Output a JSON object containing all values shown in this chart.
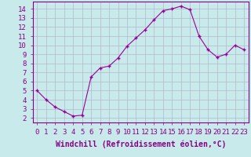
{
  "x": [
    0,
    1,
    2,
    3,
    4,
    5,
    6,
    7,
    8,
    9,
    10,
    11,
    12,
    13,
    14,
    15,
    16,
    17,
    18,
    19,
    20,
    21,
    22,
    23
  ],
  "y": [
    5.0,
    4.0,
    3.2,
    2.7,
    2.2,
    2.3,
    6.5,
    7.5,
    7.7,
    8.6,
    9.9,
    10.8,
    11.7,
    12.8,
    13.8,
    14.0,
    14.3,
    13.9,
    11.0,
    9.5,
    8.7,
    9.0,
    10.0,
    9.5
  ],
  "line_color": "#990099",
  "marker": "+",
  "marker_size": 3,
  "marker_lw": 1.0,
  "bg_color": "#c8eaea",
  "grid_color": "#b0b8cc",
  "xlabel": "Windchill (Refroidissement éolien,°C)",
  "xlim": [
    -0.5,
    23.5
  ],
  "ylim": [
    1.5,
    14.8
  ],
  "yticks": [
    2,
    3,
    4,
    5,
    6,
    7,
    8,
    9,
    10,
    11,
    12,
    13,
    14
  ],
  "xticks": [
    0,
    1,
    2,
    3,
    4,
    5,
    6,
    7,
    8,
    9,
    10,
    11,
    12,
    13,
    14,
    15,
    16,
    17,
    18,
    19,
    20,
    21,
    22,
    23
  ],
  "tick_label_size": 6.5,
  "xlabel_size": 7.0,
  "axis_label_color": "#880088",
  "spine_color": "#880088",
  "line_style": "-"
}
